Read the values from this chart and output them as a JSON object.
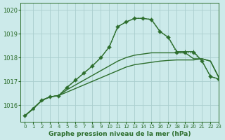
{
  "title": "Graphe pression niveau de la mer (hPa)",
  "background_color": "#cceaea",
  "grid_color": "#aacece",
  "line_color": "#2d6e2d",
  "xlim": [
    -0.5,
    23
  ],
  "ylim": [
    1015.3,
    1020.3
  ],
  "yticks": [
    1016,
    1017,
    1018,
    1019,
    1020
  ],
  "xticks": [
    0,
    1,
    2,
    3,
    4,
    5,
    6,
    7,
    8,
    9,
    10,
    11,
    12,
    13,
    14,
    15,
    16,
    17,
    18,
    19,
    20,
    21,
    22,
    23
  ],
  "series": [
    {
      "x": [
        0,
        1,
        2,
        3,
        4,
        5,
        6,
        7,
        8,
        9,
        10,
        11,
        12,
        13,
        14,
        15,
        16,
        17,
        18,
        19,
        20,
        21,
        22,
        23
      ],
      "y": [
        1015.55,
        1015.85,
        1016.2,
        1016.35,
        1016.4,
        1016.75,
        1017.05,
        1017.35,
        1017.65,
        1018.0,
        1018.45,
        1019.3,
        1019.5,
        1019.65,
        1019.65,
        1019.6,
        1019.1,
        1018.85,
        1018.2,
        1018.2,
        1018.2,
        1017.85,
        1017.2,
        1017.1
      ],
      "marker": "o",
      "markersize": 2.5,
      "linewidth": 1.0,
      "linestyle": ":"
    },
    {
      "x": [
        0,
        2,
        3,
        4,
        5,
        6,
        7,
        8,
        9,
        10,
        11,
        12,
        13,
        14,
        15,
        16,
        17,
        18,
        19,
        20,
        21,
        22,
        23
      ],
      "y": [
        1015.55,
        1016.2,
        1016.35,
        1016.4,
        1016.75,
        1017.05,
        1017.35,
        1017.65,
        1018.0,
        1018.45,
        1019.3,
        1019.5,
        1019.65,
        1019.65,
        1019.6,
        1019.1,
        1018.85,
        1018.25,
        1018.25,
        1018.25,
        1017.85,
        1017.2,
        1017.1
      ],
      "marker": "+",
      "markersize": 5,
      "linewidth": 1.0,
      "linestyle": "-"
    },
    {
      "x": [
        0,
        1,
        2,
        3,
        4,
        5,
        6,
        7,
        8,
        9,
        10,
        11,
        12,
        13,
        14,
        15,
        16,
        17,
        18,
        19,
        20,
        21,
        22,
        23
      ],
      "y": [
        1015.55,
        1015.85,
        1016.2,
        1016.35,
        1016.4,
        1016.55,
        1016.7,
        1016.85,
        1017.0,
        1017.15,
        1017.3,
        1017.45,
        1017.6,
        1017.7,
        1017.75,
        1017.8,
        1017.85,
        1017.88,
        1017.9,
        1017.9,
        1017.9,
        1017.95,
        1017.85,
        1017.15
      ],
      "marker": null,
      "linewidth": 1.0,
      "linestyle": "-"
    },
    {
      "x": [
        0,
        1,
        2,
        3,
        4,
        5,
        6,
        7,
        8,
        9,
        10,
        11,
        12,
        13,
        14,
        15,
        16,
        17,
        18,
        19,
        20,
        21,
        22,
        23
      ],
      "y": [
        1015.55,
        1015.85,
        1016.2,
        1016.35,
        1016.4,
        1016.65,
        1016.85,
        1017.05,
        1017.25,
        1017.45,
        1017.65,
        1017.85,
        1018.0,
        1018.1,
        1018.15,
        1018.2,
        1018.2,
        1018.2,
        1018.2,
        1018.2,
        1017.95,
        1017.95,
        1017.85,
        1017.15
      ],
      "marker": null,
      "linewidth": 1.0,
      "linestyle": "-"
    }
  ]
}
